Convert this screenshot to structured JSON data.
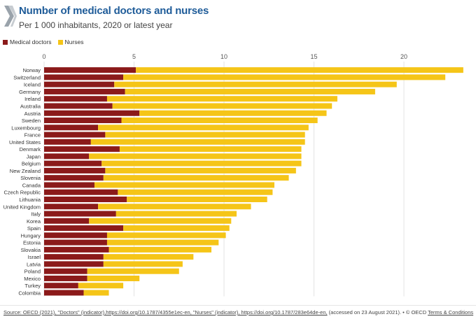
{
  "header": {
    "title": "Number of medical doctors and nurses",
    "subtitle": "Per 1 000 inhabitants, 2020 or latest year"
  },
  "legend": [
    {
      "label": "Medical doctors",
      "color": "#8b1a1a"
    },
    {
      "label": "Nurses",
      "color": "#f5c518"
    }
  ],
  "footer": {
    "source_link": "Source: OECD (2021), \"Doctors\" (indicator),https://doi.org/10.1787/4355e1ec-en, \"Nurses\" (indicator), https://doi.org/10.1787/283e64de-en,",
    "accessed": " (accessed on 23 August 2021). • © OECD ",
    "terms": "Terms & Conditions"
  },
  "chart_data": {
    "type": "bar",
    "orientation": "horizontal",
    "stacked": true,
    "xlim": [
      0,
      23.5
    ],
    "xticks": [
      0,
      5,
      10,
      15,
      20
    ],
    "grid": true,
    "legend_position": "top-left",
    "categories": [
      "Norway",
      "Switzerland",
      "Iceland",
      "Germany",
      "Ireland",
      "Australia",
      "Austria",
      "Sweden",
      "Luxembourg",
      "France",
      "United States",
      "Denmark",
      "Japan",
      "Belgium",
      "New Zealand",
      "Slovenia",
      "Canada",
      "Czech Republic",
      "Lithuania",
      "United Kingdom",
      "Italy",
      "Korea",
      "Spain",
      "Hungary",
      "Estonia",
      "Slovakia",
      "Israel",
      "Latvia",
      "Poland",
      "Mexico",
      "Turkey",
      "Colombia"
    ],
    "series": [
      {
        "name": "Medical doctors",
        "color": "#8b1a1a",
        "values": [
          5.1,
          4.4,
          3.9,
          4.5,
          3.5,
          3.8,
          5.3,
          4.3,
          3.0,
          3.4,
          2.6,
          4.2,
          2.5,
          3.2,
          3.4,
          3.3,
          2.8,
          4.1,
          4.6,
          3.0,
          4.0,
          2.5,
          4.4,
          3.5,
          3.5,
          3.6,
          3.3,
          3.3,
          2.4,
          2.4,
          1.9,
          2.2
        ]
      },
      {
        "name": "Nurses",
        "color": "#f5c518",
        "values": [
          18.2,
          17.9,
          15.7,
          13.9,
          12.8,
          12.2,
          10.4,
          10.9,
          11.7,
          11.1,
          11.9,
          10.1,
          11.8,
          11.1,
          10.6,
          10.3,
          10.0,
          8.6,
          7.8,
          8.5,
          6.7,
          7.9,
          5.9,
          6.6,
          6.2,
          5.7,
          5.0,
          4.4,
          5.1,
          2.9,
          2.5,
          1.4
        ]
      }
    ]
  }
}
